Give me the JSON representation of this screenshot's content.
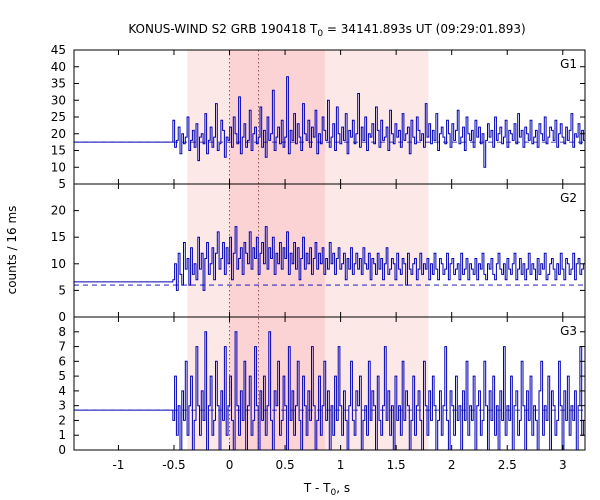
{
  "chart_data": {
    "type": "line",
    "title": {
      "prefix": "KONUS-WIND S2 GRB 190418 T",
      "subscript": "0",
      "suffix": " = 34141.893s UT (09:29:01.893)"
    },
    "xlabel": {
      "prefix": "T - T",
      "subscript": "0",
      "suffix": ", s"
    },
    "ylabel": "counts / 16 ms",
    "xlim": [
      -1.4,
      3.2
    ],
    "x_ticks": [
      -1,
      -0.5,
      0,
      0.5,
      1,
      1.5,
      2,
      2.5,
      3
    ],
    "x_tick_labels": [
      "-1",
      "-0.5",
      "0",
      "0.5",
      "1",
      "1.5",
      "2",
      "2.5",
      "3"
    ],
    "shaded_intervals": [
      {
        "x0": -0.38,
        "x1": 1.79,
        "color": "#fde8e8"
      },
      {
        "x0": 0.0,
        "x1": 0.86,
        "color": "#fbd3d5"
      }
    ],
    "vertical_markers": [
      0.0,
      0.26
    ],
    "line_color": "#0000b4",
    "panels": [
      {
        "name": "G1",
        "ylim": [
          5,
          45
        ],
        "y_ticks": [
          5,
          10,
          15,
          20,
          25,
          30,
          35,
          40,
          45
        ],
        "y_tick_labels": [
          "5",
          "10",
          "15",
          "20",
          "25",
          "30",
          "35",
          "40",
          "45"
        ],
        "background": 17.5,
        "pre_burst_level": 17.5,
        "burst_start": -0.51,
        "bin_width": 0.016,
        "values": [
          24,
          16,
          18,
          22,
          14,
          20,
          17,
          19,
          25,
          15,
          18,
          21,
          16,
          23,
          12,
          19,
          20,
          17,
          26,
          14,
          18,
          22,
          16,
          19,
          29,
          15,
          17,
          24,
          21,
          13,
          19,
          18,
          22,
          16,
          25,
          20,
          17,
          31,
          14,
          19,
          23,
          16,
          18,
          27,
          15,
          20,
          22,
          17,
          19,
          28,
          16,
          21,
          13,
          25,
          18,
          20,
          33,
          15,
          19,
          22,
          17,
          24,
          16,
          19,
          37,
          14,
          21,
          18,
          26,
          17,
          23,
          19,
          15,
          29,
          20,
          18,
          24,
          16,
          22,
          19,
          27,
          14,
          20,
          17,
          25,
          21,
          18,
          30,
          16,
          19,
          23,
          15,
          28,
          20,
          17,
          22,
          18,
          26,
          14,
          21,
          19,
          24,
          17,
          20,
          32,
          16,
          22,
          18,
          25,
          15,
          20,
          19,
          23,
          17,
          28,
          21,
          16,
          24,
          18,
          19,
          22,
          15,
          27,
          20,
          17,
          23,
          19,
          21,
          16,
          26,
          18,
          20,
          22,
          14,
          24,
          19,
          17,
          25,
          21,
          18,
          20,
          16,
          29,
          19,
          23,
          17,
          21,
          18,
          26,
          15,
          20,
          22,
          19,
          17,
          24,
          20,
          16,
          23,
          18,
          21,
          27,
          17,
          19,
          22,
          15,
          25,
          20,
          18,
          21,
          16,
          24,
          19,
          22,
          17,
          20,
          10,
          18,
          23,
          19,
          21,
          16,
          25,
          18,
          20,
          22,
          17,
          19,
          24,
          16,
          21,
          20,
          18,
          23,
          17,
          26,
          19,
          21,
          16,
          22,
          20,
          18,
          24,
          17,
          19,
          21,
          16,
          23,
          20,
          18,
          25,
          17,
          19,
          22,
          21,
          18,
          24,
          16,
          20,
          23,
          19,
          17,
          22,
          18,
          21,
          26,
          16,
          20,
          19,
          23,
          17,
          21,
          18,
          24,
          20,
          16,
          22,
          19,
          21,
          17,
          25,
          18,
          20,
          23,
          16,
          19,
          22,
          18,
          21,
          17,
          24,
          20,
          19,
          22,
          16,
          23,
          18,
          21,
          20,
          17,
          24,
          19,
          22,
          18,
          20,
          16,
          23,
          21,
          19,
          25,
          17,
          20,
          18,
          22,
          19,
          21,
          16,
          24,
          20,
          18,
          23,
          17,
          21,
          19,
          22,
          18,
          20
        ]
      },
      {
        "name": "G2",
        "ylim": [
          0,
          25
        ],
        "y_ticks": [
          0,
          5,
          10,
          15,
          20
        ],
        "y_tick_labels": [
          "0",
          "5",
          "10",
          "15",
          "20"
        ],
        "background": 6.0,
        "pre_burst_level": 6.6,
        "burst_start": -0.51,
        "bin_width": 0.016,
        "values": [
          7,
          10,
          5,
          12,
          8,
          6,
          14,
          9,
          11,
          6,
          13,
          8,
          10,
          7,
          15,
          9,
          12,
          5,
          11,
          14,
          8,
          10,
          13,
          7,
          12,
          16,
          9,
          11,
          14,
          8,
          13,
          10,
          15,
          7,
          12,
          17,
          9,
          11,
          13,
          8,
          14,
          12,
          10,
          16,
          9,
          13,
          11,
          15,
          8,
          12,
          14,
          10,
          17,
          9,
          13,
          11,
          15,
          8,
          12,
          10,
          14,
          9,
          13,
          11,
          16,
          8,
          12,
          10,
          14,
          9,
          13,
          7,
          11,
          15,
          9,
          12,
          10,
          13,
          8,
          11,
          14,
          9,
          12,
          10,
          13,
          8,
          11,
          9,
          14,
          10,
          12,
          8,
          11,
          13,
          9,
          10,
          12,
          7,
          11,
          9,
          13,
          8,
          10,
          12,
          9,
          11,
          8,
          13,
          10,
          9,
          12,
          7,
          11,
          10,
          8,
          12,
          9,
          11,
          7,
          10,
          13,
          8,
          9,
          11,
          10,
          7,
          12,
          9,
          8,
          11,
          10,
          6,
          12,
          9,
          8,
          10,
          11,
          7,
          9,
          12,
          8,
          10,
          9,
          11,
          7,
          10,
          8,
          12,
          9,
          7,
          11,
          10,
          8,
          9,
          12,
          7,
          10,
          11,
          8,
          9,
          10,
          7,
          12,
          8,
          9,
          11,
          7,
          10,
          9,
          8,
          11,
          7,
          10,
          9,
          12,
          8,
          7,
          10,
          9,
          11,
          8,
          7,
          10,
          12,
          9,
          8,
          10,
          7,
          11,
          9,
          8,
          10,
          12,
          7,
          9,
          11,
          8,
          10,
          7,
          9,
          12,
          8,
          10,
          9,
          7,
          11,
          8,
          10,
          9,
          12,
          7,
          8,
          10,
          11,
          9,
          7,
          10,
          8,
          12,
          9,
          7,
          11,
          10,
          8,
          9,
          12,
          7,
          10,
          11,
          8,
          9,
          10,
          7,
          12,
          8,
          1,
          9,
          10,
          7,
          11,
          8,
          9,
          10,
          7,
          12,
          8,
          9,
          11,
          7,
          10,
          8,
          9,
          12,
          7,
          10,
          9,
          11,
          8,
          7,
          10,
          12,
          9,
          8,
          11,
          7,
          10,
          9,
          8,
          12,
          7,
          10,
          9,
          11,
          8,
          10,
          7,
          9,
          12,
          8,
          10,
          9
        ]
      },
      {
        "name": "G3",
        "ylim": [
          0,
          9
        ],
        "y_ticks": [
          0,
          1,
          2,
          3,
          4,
          5,
          6,
          7,
          8
        ],
        "y_tick_labels": [
          "0",
          "1",
          "2",
          "3",
          "4",
          "5",
          "6",
          "7",
          "8"
        ],
        "background": 2.7,
        "pre_burst_level": 2.7,
        "burst_start": -0.51,
        "bin_width": 0.016,
        "values": [
          2,
          5,
          1,
          3,
          0,
          4,
          2,
          6,
          1,
          3,
          5,
          0,
          2,
          7,
          3,
          1,
          4,
          2,
          8,
          0,
          3,
          5,
          1,
          2,
          6,
          3,
          0,
          4,
          2,
          7,
          1,
          3,
          5,
          2,
          0,
          8,
          3,
          1,
          4,
          2,
          6,
          0,
          3,
          5,
          1,
          2,
          7,
          3,
          0,
          4,
          2,
          5,
          1,
          3,
          8,
          2,
          0,
          4,
          3,
          6,
          1,
          2,
          5,
          3,
          0,
          7,
          2,
          4,
          1,
          3,
          6,
          2,
          0,
          5,
          3,
          1,
          4,
          2,
          7,
          3,
          0,
          2,
          5,
          1,
          3,
          6,
          2,
          4,
          0,
          3,
          1,
          5,
          2,
          7,
          3,
          1,
          4,
          2,
          0,
          3,
          6,
          2,
          1,
          4,
          3,
          5,
          0,
          2,
          3,
          1,
          6,
          2,
          4,
          3,
          0,
          5,
          2,
          1,
          3,
          7,
          2,
          4,
          1,
          3,
          0,
          5,
          2,
          3,
          1,
          6,
          2,
          4,
          3,
          0,
          2,
          5,
          1,
          3,
          4,
          2,
          0,
          6,
          3,
          1,
          4,
          2,
          5,
          3,
          0,
          2,
          4,
          1,
          3,
          7,
          2,
          0,
          4,
          3,
          1,
          5,
          2,
          3,
          0,
          4,
          2,
          6,
          1,
          3,
          2,
          5,
          0,
          3,
          4,
          1,
          2,
          6,
          3,
          0,
          4,
          2,
          5,
          1,
          3,
          0,
          4,
          2,
          7,
          1,
          3,
          2,
          5,
          0,
          3,
          4,
          1,
          2,
          6,
          3,
          0,
          4,
          2,
          5,
          1,
          3,
          2,
          0,
          4,
          6,
          1,
          3,
          2,
          5,
          0,
          4,
          3,
          1,
          2,
          6,
          3,
          0,
          4,
          2,
          5,
          1,
          3,
          2,
          4,
          0,
          3,
          7,
          1,
          2,
          4,
          3,
          0,
          5,
          2,
          1,
          4,
          3,
          2,
          6,
          0,
          3,
          1,
          4,
          2,
          5,
          3,
          0,
          2,
          4,
          1,
          3,
          6,
          2,
          0,
          4,
          3,
          1,
          5,
          2,
          3,
          0,
          4,
          2,
          5,
          1,
          3,
          2,
          4,
          0,
          3,
          6,
          1,
          2,
          4,
          3,
          0,
          5
        ]
      }
    ]
  }
}
